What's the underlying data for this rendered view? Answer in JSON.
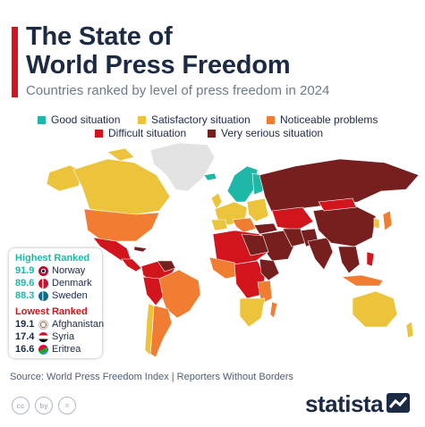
{
  "title": "The State of\nWorld Press Freedom",
  "subtitle": "Countries ranked by level of press freedom in 2024",
  "colors": {
    "accent": "#d7141c",
    "good": "#1fb8a8",
    "satisfactory": "#ebc43b",
    "noticeable": "#f07d32",
    "difficult": "#d2141c",
    "very_serious": "#771f1f",
    "no_data": "#e3e3e3"
  },
  "legend": [
    {
      "label": "Good situation",
      "color": "#1fb8a8"
    },
    {
      "label": "Satisfactory situation",
      "color": "#ebc43b"
    },
    {
      "label": "Noticeable problems",
      "color": "#f07d32"
    },
    {
      "label": "Difficult situation",
      "color": "#d2141c"
    },
    {
      "label": "Very serious situation",
      "color": "#771f1f"
    }
  ],
  "chart_data": {
    "type": "choropleth-map",
    "title": "The State of World Press Freedom",
    "subtitle": "Countries ranked by level of press freedom in 2024",
    "categories": [
      "Good situation",
      "Satisfactory situation",
      "Noticeable problems",
      "Difficult situation",
      "Very serious situation"
    ],
    "highest_ranked": [
      {
        "country": "Norway",
        "score": 91.9
      },
      {
        "country": "Denmark",
        "score": 89.6
      },
      {
        "country": "Sweden",
        "score": 88.3
      }
    ],
    "lowest_ranked": [
      {
        "country": "Afghanistan",
        "score": 19.1
      },
      {
        "country": "Syria",
        "score": 17.4
      },
      {
        "country": "Eritrea",
        "score": 16.6
      }
    ]
  },
  "ranks": {
    "highest_heading": "Highest Ranked",
    "lowest_heading": "Lowest Ranked",
    "highest": [
      {
        "score": "91.9",
        "name": "Norway",
        "flag": "norway-flag-icon"
      },
      {
        "score": "89.6",
        "name": "Denmark",
        "flag": "denmark-flag-icon"
      },
      {
        "score": "88.3",
        "name": "Sweden",
        "flag": "sweden-flag-icon"
      }
    ],
    "lowest": [
      {
        "score": "19.1",
        "name": "Afghanistan",
        "flag": "afghanistan-flag-icon"
      },
      {
        "score": "17.4",
        "name": "Syria",
        "flag": "syria-flag-icon"
      },
      {
        "score": "16.6",
        "name": "Eritrea",
        "flag": "eritrea-flag-icon"
      }
    ]
  },
  "source": "Source: World Press Freedom Index | Reporters Without Borders",
  "footer": {
    "logo": "statista",
    "cc_icons": [
      "cc",
      "by",
      "="
    ]
  }
}
